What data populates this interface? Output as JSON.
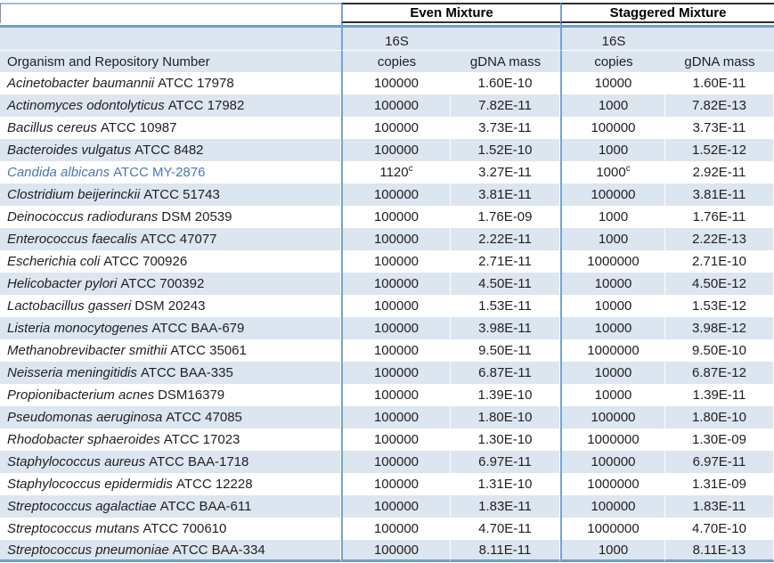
{
  "table": {
    "col_headers": {
      "corner": "",
      "even_group": "Even Mixture",
      "staggered_group": "Staggered Mixture",
      "organism": "Organism and Repository Number",
      "copies_line1": "16S",
      "copies_line2": "copies",
      "mass": "gDNA mass"
    },
    "footnote_marker": "c",
    "colors": {
      "stripe_blue": "#DCE6F1",
      "border_blue": "#6F9DCE",
      "header_line_black": "#2F2F2F",
      "highlight_text_blue": "#4A77B5",
      "body_text": "#1F1F1F"
    },
    "rows": [
      {
        "name": "Acinetobacter baumannii",
        "id": "ATCC 17978",
        "even_copies": "100000",
        "even_mass": "1.60E-10",
        "stag_copies": "10000",
        "stag_mass": "1.60E-11"
      },
      {
        "name": "Actinomyces odontolyticus",
        "id": "ATCC 17982",
        "even_copies": "100000",
        "even_mass": "7.82E-11",
        "stag_copies": "1000",
        "stag_mass": "7.82E-13"
      },
      {
        "name": "Bacillus cereus",
        "id": "ATCC 10987",
        "even_copies": "100000",
        "even_mass": "3.73E-11",
        "stag_copies": "100000",
        "stag_mass": "3.73E-11"
      },
      {
        "name": "Bacteroides vulgatus",
        "id": "ATCC 8482",
        "even_copies": "100000",
        "even_mass": "1.52E-10",
        "stag_copies": "1000",
        "stag_mass": "1.52E-12"
      },
      {
        "name": "Candida albicans",
        "id": "ATCC MY-2876",
        "even_copies": "1120",
        "even_sup": "c",
        "even_mass": "3.27E-11",
        "stag_copies": "1000",
        "stag_sup": "c",
        "stag_mass": "2.92E-11",
        "highlight": true
      },
      {
        "name": "Clostridium beijerinckii",
        "id": "ATCC 51743",
        "even_copies": "100000",
        "even_mass": "3.81E-11",
        "stag_copies": "100000",
        "stag_mass": "3.81E-11"
      },
      {
        "name": "Deinococcus radiodurans",
        "id": "DSM 20539",
        "even_copies": "100000",
        "even_mass": "1.76E-09",
        "stag_copies": "1000",
        "stag_mass": "1.76E-11"
      },
      {
        "name": "Enterococcus faecalis",
        "id": "ATCC 47077",
        "even_copies": "100000",
        "even_mass": "2.22E-11",
        "stag_copies": "1000",
        "stag_mass": "2.22E-13"
      },
      {
        "name": "Escherichia coli",
        "id": "ATCC 700926",
        "even_copies": "100000",
        "even_mass": "2.71E-11",
        "stag_copies": "1000000",
        "stag_mass": "2.71E-10"
      },
      {
        "name": "Helicobacter pylori",
        "id": "ATCC 700392",
        "even_copies": "100000",
        "even_mass": "4.50E-11",
        "stag_copies": "10000",
        "stag_mass": "4.50E-12"
      },
      {
        "name": "Lactobacillus gasseri",
        "id": "DSM 20243",
        "even_copies": "100000",
        "even_mass": "1.53E-11",
        "stag_copies": "10000",
        "stag_mass": "1.53E-12"
      },
      {
        "name": "Listeria monocytogenes",
        "id": "ATCC BAA-679",
        "even_copies": "100000",
        "even_mass": "3.98E-11",
        "stag_copies": "10000",
        "stag_mass": "3.98E-12"
      },
      {
        "name": "Methanobrevibacter smithii",
        "id": "ATCC 35061",
        "even_copies": "100000",
        "even_mass": "9.50E-11",
        "stag_copies": "1000000",
        "stag_mass": "9.50E-10"
      },
      {
        "name": "Neisseria meningitidis",
        "id": "ATCC BAA-335",
        "even_copies": "100000",
        "even_mass": "6.87E-11",
        "stag_copies": "10000",
        "stag_mass": "6.87E-12"
      },
      {
        "name": "Propionibacterium acnes",
        "id": "DSM16379",
        "even_copies": "100000",
        "even_mass": "1.39E-10",
        "stag_copies": "10000",
        "stag_mass": "1.39E-11"
      },
      {
        "name": "Pseudomonas aeruginosa",
        "id": "ATCC 47085",
        "even_copies": "100000",
        "even_mass": "1.80E-10",
        "stag_copies": "100000",
        "stag_mass": "1.80E-10"
      },
      {
        "name": "Rhodobacter sphaeroides",
        "id": "ATCC 17023",
        "even_copies": "100000",
        "even_mass": "1.30E-10",
        "stag_copies": "1000000",
        "stag_mass": "1.30E-09"
      },
      {
        "name": "Staphylococcus aureus",
        "id": "ATCC BAA-1718",
        "even_copies": "100000",
        "even_mass": "6.97E-11",
        "stag_copies": "100000",
        "stag_mass": "6.97E-11"
      },
      {
        "name": "Staphylococcus epidermidis",
        "id": "ATCC 12228",
        "even_copies": "100000",
        "even_mass": "1.31E-10",
        "stag_copies": "1000000",
        "stag_mass": "1.31E-09"
      },
      {
        "name": "Streptococcus agalactiae",
        "id": "ATCC BAA-611",
        "even_copies": "100000",
        "even_mass": "1.83E-11",
        "stag_copies": "100000",
        "stag_mass": "1.83E-11"
      },
      {
        "name": "Streptococcus mutans",
        "id": "ATCC 700610",
        "even_copies": "100000",
        "even_mass": "4.70E-11",
        "stag_copies": "1000000",
        "stag_mass": "4.70E-10"
      },
      {
        "name": "Streptococcus pneumoniae",
        "id": "ATCC BAA-334",
        "even_copies": "100000",
        "even_mass": "8.11E-11",
        "stag_copies": "1000",
        "stag_mass": "8.11E-13"
      }
    ]
  }
}
